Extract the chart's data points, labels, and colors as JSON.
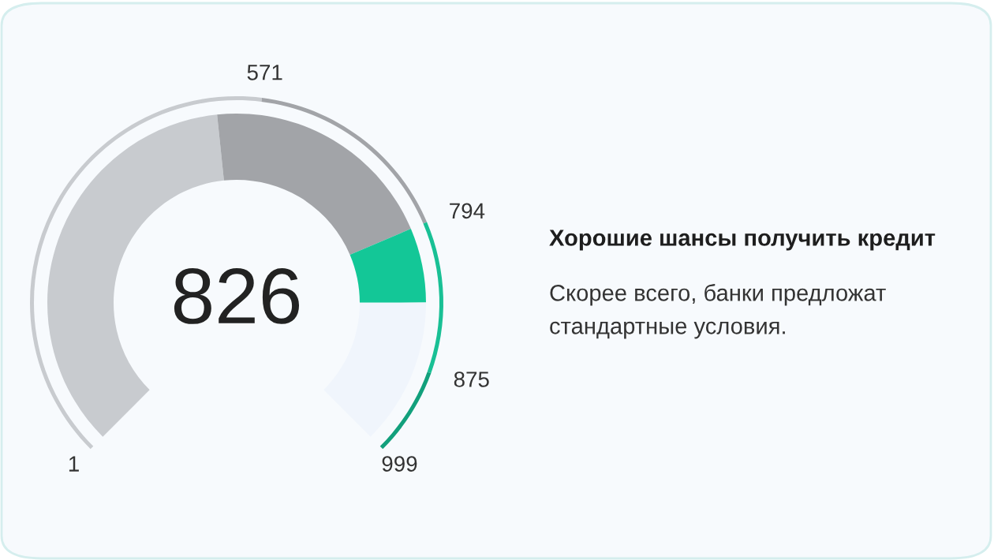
{
  "chart_data": {
    "type": "donut",
    "title": "Хорошие шансы получить кредит",
    "subtitle": "Скорее всего, банки предложат стандартные условия.",
    "categories": [
      null,
      null,
      null,
      null
    ],
    "series": [
      {
        "values": [
          47.8,
          27.0,
          8.5,
          16.7
        ],
        "colors": [
          "#c8cbcf",
          "#a2a4a8",
          "#13c797",
          "#f0f5fc"
        ]
      },
      {
        "values": [
          52.6,
          22.2,
          15.9,
          9.3
        ],
        "colors": [
          "#c8cbcf",
          "#a2a4a8",
          "#19c095",
          "#12a07c"
        ]
      }
    ],
    "annotations": [
      "826",
      "1",
      "571",
      "794",
      "875",
      "999"
    ]
  }
}
